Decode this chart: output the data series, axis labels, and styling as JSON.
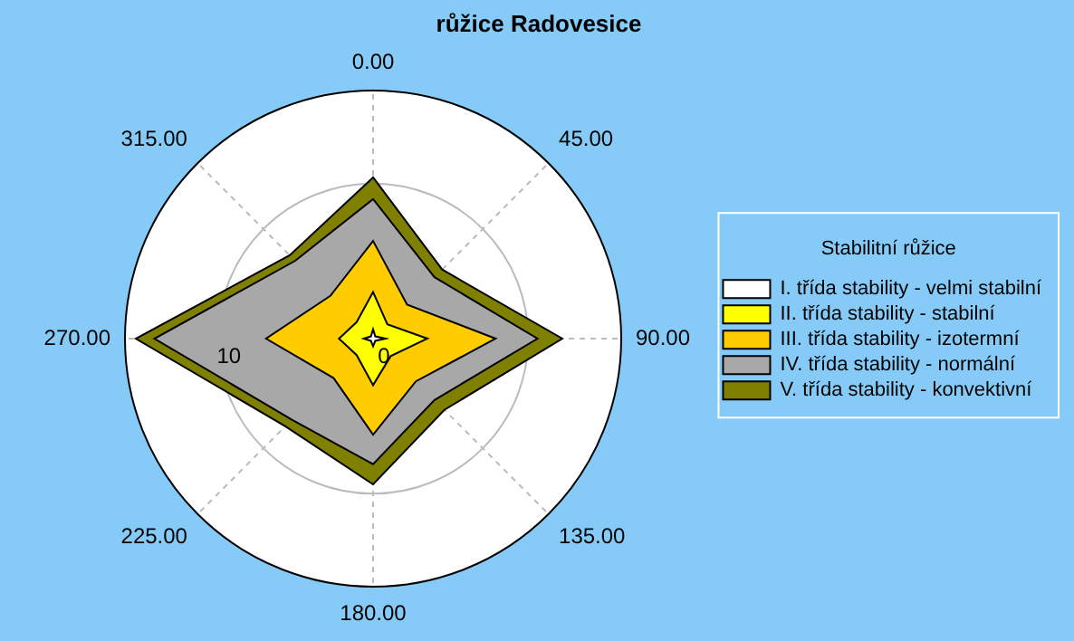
{
  "chart_data": {
    "type": "radar",
    "title": "růžice Radovesice",
    "legend_title": "Stabilitní růžice",
    "legend": "right",
    "categories": [
      "0.00",
      "45.00",
      "90.00",
      "135.00",
      "180.00",
      "225.00",
      "270.00",
      "315.00"
    ],
    "ylim": [
      0,
      16
    ],
    "yticks": [
      0,
      10
    ],
    "grid": true,
    "series": [
      {
        "name": "I. třída stability - velmi stabilní",
        "color": "#ffffff",
        "values": [
          0.6,
          0.2,
          0.8,
          0.2,
          0.5,
          0.2,
          0.6,
          0.2
        ]
      },
      {
        "name": "II. třída stability - stabilní",
        "color": "#ffff00",
        "values": [
          3.0,
          1.3,
          3.5,
          1.6,
          3.0,
          1.5,
          2.2,
          1.5
        ]
      },
      {
        "name": "III. třída stability - izotermní",
        "color": "#ffcc00",
        "values": [
          6.3,
          3.1,
          7.9,
          3.9,
          6.2,
          3.6,
          6.9,
          3.9
        ]
      },
      {
        "name": "IV. třída stability - normální",
        "color": "#a8a8a8",
        "values": [
          9.0,
          5.6,
          10.6,
          5.6,
          8.1,
          7.4,
          14.1,
          7.1
        ]
      },
      {
        "name": "V. třída stability - konvektivní",
        "color": "#808000",
        "values": [
          10.4,
          6.3,
          12.2,
          6.5,
          9.4,
          8.0,
          15.3,
          7.6
        ]
      }
    ]
  }
}
